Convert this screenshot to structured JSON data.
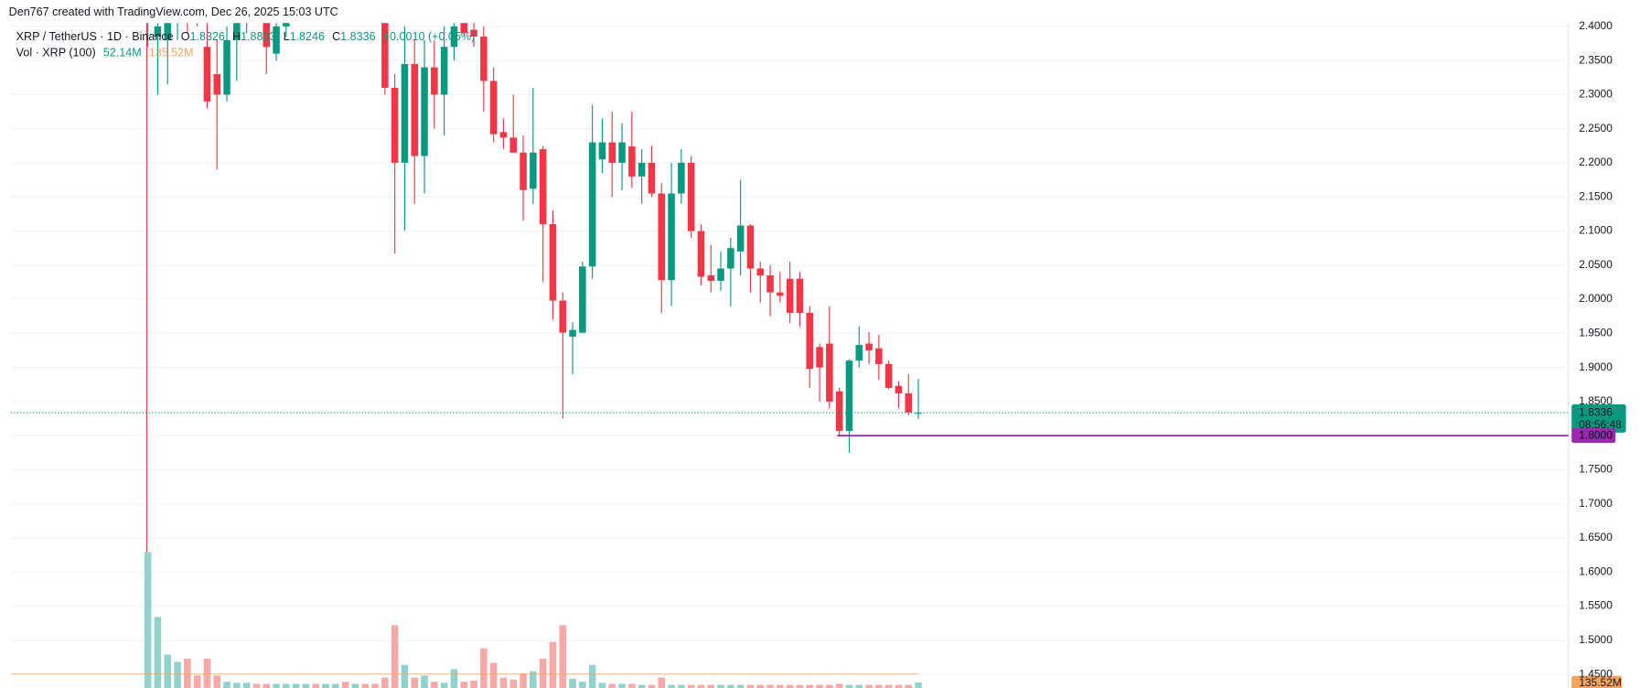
{
  "header": {
    "author_line": "Den767 created with TradingView.com, Dec 26, 2025 15:03 UTC"
  },
  "chart_data": {
    "type": "candlestick",
    "title": "XRP / TetherUS · 1D · Binance",
    "legend": {
      "o": "O",
      "h": "H",
      "l": "L",
      "c": "C",
      "change": "+0.0010 (+0.05%)"
    },
    "volume_legend": {
      "name": "Vol · XRP (100)",
      "last_label": "52.14M",
      "ma": {
        "value": 135.52,
        "label": "135.52M"
      }
    },
    "up_color": "#089981",
    "down_color": "#f23645",
    "volume_up_color": "#92d2cc",
    "volume_down_color": "#f7a9a7",
    "volume_ma_color": "#f7a35c",
    "candles": {
      "open": [
        2.43,
        2.385,
        2.38,
        2.42,
        2.44,
        2.45,
        2.37,
        2.33,
        2.3,
        2.38,
        2.43,
        2.46,
        2.44,
        2.36,
        2.4,
        2.46,
        2.5,
        2.54,
        2.52,
        2.56,
        2.58,
        2.53,
        2.55,
        2.47,
        2.44,
        2.31,
        2.2,
        2.345,
        2.21,
        2.34,
        2.3,
        2.37,
        2.41,
        2.395,
        2.385,
        2.32,
        2.245,
        2.237,
        2.215,
        2.162,
        2.22,
        2.11,
        1.998,
        1.945,
        1.951,
        2.048,
        2.205,
        2.23,
        2.2,
        2.224,
        2.18,
        2.2,
        2.155,
        2.028,
        2.155,
        2.2,
        2.1,
        2.035,
        2.027,
        2.045,
        2.07,
        2.108,
        2.045,
        2.035,
        2.01,
        2.03,
        2.03,
        1.98,
        1.93,
        1.935,
        1.865,
        1.807,
        1.91,
        1.935,
        1.928,
        1.905,
        1.873,
        1.862,
        1.8326
      ],
      "high": [
        2.5,
        2.45,
        2.45,
        2.48,
        2.5,
        2.5,
        2.42,
        2.38,
        2.4,
        2.45,
        2.5,
        2.52,
        2.48,
        2.42,
        2.48,
        2.52,
        2.56,
        2.6,
        2.58,
        2.62,
        2.63,
        2.58,
        2.58,
        2.52,
        2.48,
        2.33,
        2.4,
        2.38,
        2.38,
        2.38,
        2.4,
        2.43,
        2.45,
        2.42,
        2.4,
        2.34,
        2.265,
        2.3,
        2.24,
        2.31,
        2.225,
        2.13,
        2.01,
        1.966,
        2.055,
        2.285,
        2.265,
        2.275,
        2.258,
        2.275,
        2.22,
        2.225,
        2.17,
        2.2,
        2.22,
        2.21,
        2.11,
        2.08,
        2.07,
        2.09,
        2.175,
        2.11,
        2.055,
        2.05,
        2.04,
        2.055,
        2.04,
        1.99,
        1.935,
        1.99,
        1.87,
        1.912,
        1.96,
        1.952,
        1.948,
        1.91,
        1.88,
        1.89,
        1.8833
      ],
      "low": [
        2.37,
        2.3,
        2.315,
        2.38,
        2.39,
        2.4,
        2.28,
        2.19,
        2.29,
        2.32,
        2.39,
        2.42,
        2.33,
        2.35,
        2.385,
        2.44,
        2.48,
        2.5,
        2.47,
        2.52,
        2.5,
        2.48,
        2.45,
        2.41,
        2.3,
        2.067,
        2.1,
        2.14,
        2.155,
        2.25,
        2.24,
        2.35,
        2.385,
        2.37,
        2.275,
        2.23,
        2.22,
        2.215,
        2.115,
        2.14,
        2.025,
        1.97,
        1.825,
        1.89,
        1.95,
        2.03,
        2.185,
        2.15,
        2.16,
        2.163,
        2.14,
        2.15,
        1.98,
        1.99,
        2.14,
        2.09,
        2.02,
        2.01,
        2.012,
        1.99,
        2.035,
        2.01,
        1.995,
        1.975,
        1.995,
        1.965,
        1.96,
        1.87,
        1.85,
        1.84,
        1.8,
        1.775,
        1.9,
        1.905,
        1.882,
        1.868,
        1.84,
        1.83,
        1.8246
      ],
      "close": [
        2.46,
        2.4,
        2.42,
        2.44,
        2.41,
        2.42,
        2.29,
        2.3,
        2.38,
        2.43,
        2.46,
        2.44,
        2.37,
        2.4,
        2.46,
        2.5,
        2.54,
        2.52,
        2.56,
        2.58,
        2.53,
        2.55,
        2.47,
        2.44,
        2.31,
        2.2,
        2.345,
        2.21,
        2.34,
        2.3,
        2.37,
        2.4,
        2.39,
        2.385,
        2.32,
        2.242,
        2.237,
        2.215,
        2.16,
        2.215,
        2.11,
        1.998,
        1.951,
        1.955,
        2.048,
        2.23,
        2.23,
        2.2,
        2.23,
        2.18,
        2.2,
        2.155,
        2.028,
        2.155,
        2.2,
        2.1,
        2.033,
        2.027,
        2.045,
        2.075,
        2.108,
        2.045,
        2.035,
        2.01,
        2.005,
        1.98,
        1.98,
        1.898,
        1.9,
        1.85,
        1.807,
        1.91,
        1.933,
        1.925,
        1.905,
        1.87,
        1.862,
        1.834,
        1.8336
      ]
    },
    "volume": [
      1300,
      680,
      320,
      250,
      280,
      120,
      280,
      120,
      60,
      50,
      50,
      40,
      40,
      40,
      40,
      40,
      40,
      40,
      40,
      40,
      60,
      40,
      40,
      40,
      100,
      600,
      220,
      100,
      120,
      60,
      50,
      180,
      60,
      70,
      380,
      240,
      100,
      80,
      140,
      160,
      280,
      440,
      600,
      90,
      60,
      220,
      50,
      40,
      40,
      40,
      30,
      30,
      100,
      30,
      30,
      30,
      30,
      30,
      30,
      30,
      30,
      30,
      30,
      30,
      30,
      30,
      30,
      30,
      30,
      30,
      40,
      30,
      30,
      30,
      30,
      30,
      30,
      30,
      52.14
    ],
    "countdown": "08:56:48",
    "hline": {
      "value": 1.8,
      "label": "1.8000",
      "color": "#9c27b0"
    },
    "ylim": [
      1.43,
      2.405
    ],
    "yticks": [
      {
        "value": 2.4,
        "label": "2.4000"
      },
      {
        "value": 2.35,
        "label": "2.3500"
      },
      {
        "value": 2.3,
        "label": "2.3000"
      },
      {
        "value": 2.25,
        "label": "2.2500"
      },
      {
        "value": 2.2,
        "label": "2.2000"
      },
      {
        "value": 2.15,
        "label": "2.1500"
      },
      {
        "value": 2.1,
        "label": "2.1000"
      },
      {
        "value": 2.05,
        "label": "2.0500"
      },
      {
        "value": 2.0,
        "label": "2.0000"
      },
      {
        "value": 1.95,
        "label": "1.9500"
      },
      {
        "value": 1.9,
        "label": "1.9000"
      },
      {
        "value": 1.85,
        "label": "1.8500"
      },
      {
        "value": 1.8,
        "label": "1.8000"
      },
      {
        "value": 1.75,
        "label": "1.7500"
      },
      {
        "value": 1.7,
        "label": "1.7000"
      },
      {
        "value": 1.65,
        "label": "1.6500"
      },
      {
        "value": 1.6,
        "label": "1.6000"
      },
      {
        "value": 1.55,
        "label": "1.5500"
      },
      {
        "value": 1.5,
        "label": "1.5000"
      },
      {
        "value": 1.45,
        "label": "1.4500"
      }
    ],
    "grid": true
  }
}
